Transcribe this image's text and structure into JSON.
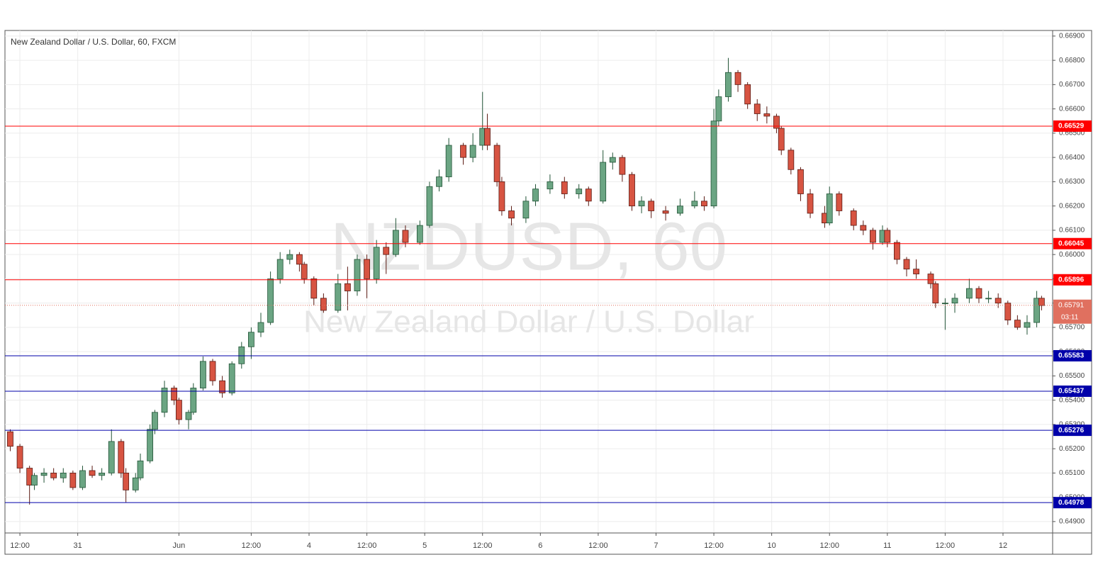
{
  "chart_data": {
    "type": "candlestick",
    "title": "New Zealand Dollar / U.S. Dollar, 60, FXCM",
    "watermark": "NZDUSD, 60",
    "watermark_subtitle": "New Zealand Dollar / U.S. Dollar",
    "x": [
      -2,
      0,
      2,
      3,
      5,
      7,
      9,
      11,
      13,
      15,
      17,
      19,
      21,
      22,
      24,
      25,
      27,
      28,
      30,
      32,
      33,
      35,
      36,
      38,
      40,
      42,
      44,
      46,
      48,
      50,
      52,
      54,
      56,
      58,
      59,
      61,
      63,
      66,
      68,
      70,
      72,
      74,
      76,
      78,
      80,
      83,
      85,
      87,
      89,
      92,
      94,
      96,
      97,
      99,
      100,
      102,
      105,
      107,
      110,
      113,
      116,
      118,
      121,
      123,
      125,
      127,
      129,
      131,
      134,
      137,
      140,
      142,
      144,
      145,
      147,
      149,
      151,
      153,
      155,
      157,
      158,
      160,
      162,
      164,
      167,
      168,
      170,
      173,
      175,
      177,
      179,
      180,
      182,
      184,
      186,
      189,
      190,
      192,
      194,
      197,
      199,
      201,
      203,
      205,
      207,
      209,
      211,
      212
    ],
    "open": [
      0.6527,
      0.6521,
      0.6512,
      0.6505,
      0.6509,
      0.651,
      0.6508,
      0.651,
      0.6504,
      0.6511,
      0.6509,
      0.651,
      0.6523,
      0.651,
      0.6503,
      0.6508,
      0.6515,
      0.6528,
      0.6535,
      0.6545,
      0.654,
      0.6532,
      0.6535,
      0.6545,
      0.6556,
      0.6548,
      0.6543,
      0.6555,
      0.6562,
      0.6568,
      0.6572,
      0.659,
      0.6598,
      0.66,
      0.6596,
      0.659,
      0.6582,
      0.6577,
      0.6588,
      0.6585,
      0.6598,
      0.659,
      0.6603,
      0.66,
      0.661,
      0.6605,
      0.6612,
      0.6628,
      0.6632,
      0.6645,
      0.664,
      0.6645,
      0.6652,
      0.6645,
      0.663,
      0.6618,
      0.6615,
      0.6622,
      0.6627,
      0.663,
      0.6625,
      0.6627,
      0.6622,
      0.6638,
      0.664,
      0.6633,
      0.662,
      0.6622,
      0.6618,
      0.6617,
      0.662,
      0.6622,
      0.662,
      0.6655,
      0.6665,
      0.6675,
      0.667,
      0.6662,
      0.6658,
      0.6657,
      0.6652,
      0.6643,
      0.6635,
      0.6625,
      0.6617,
      0.6613,
      0.6625,
      0.6618,
      0.6612,
      0.661,
      0.6605,
      0.661,
      0.6605,
      0.6598,
      0.6594,
      0.6592,
      0.6588,
      0.658,
      0.658,
      0.6582,
      0.6586,
      0.6582,
      0.6582,
      0.658,
      0.6573,
      0.657,
      0.6572,
      0.6582
    ],
    "high": [
      0.6528,
      0.6522,
      0.6513,
      0.651,
      0.6512,
      0.6512,
      0.6512,
      0.6511,
      0.6513,
      0.6513,
      0.6512,
      0.6528,
      0.6524,
      0.6512,
      0.651,
      0.6518,
      0.653,
      0.6536,
      0.6548,
      0.6546,
      0.6541,
      0.6536,
      0.6547,
      0.6558,
      0.6557,
      0.655,
      0.6556,
      0.6564,
      0.657,
      0.6576,
      0.6593,
      0.6601,
      0.6602,
      0.6601,
      0.6597,
      0.6591,
      0.6584,
      0.6592,
      0.6595,
      0.66,
      0.66,
      0.6606,
      0.6605,
      0.6615,
      0.6612,
      0.6614,
      0.663,
      0.6635,
      0.6648,
      0.6646,
      0.665,
      0.6667,
      0.6658,
      0.6646,
      0.6632,
      0.662,
      0.6624,
      0.6629,
      0.6633,
      0.6632,
      0.6629,
      0.6628,
      0.6643,
      0.6642,
      0.6641,
      0.6634,
      0.6624,
      0.6623,
      0.662,
      0.6623,
      0.6626,
      0.6624,
      0.666,
      0.6668,
      0.6681,
      0.6676,
      0.6671,
      0.6664,
      0.6661,
      0.6658,
      0.6653,
      0.6644,
      0.6636,
      0.6627,
      0.662,
      0.6628,
      0.6626,
      0.6619,
      0.6614,
      0.6611,
      0.6612,
      0.6611,
      0.6606,
      0.6599,
      0.6598,
      0.6593,
      0.6589,
      0.6582,
      0.6584,
      0.659,
      0.6587,
      0.6585,
      0.6584,
      0.6581,
      0.6575,
      0.6575,
      0.6585,
      0.6583
    ],
    "low": [
      0.6519,
      0.651,
      0.6497,
      0.6503,
      0.6506,
      0.6507,
      0.6506,
      0.6503,
      0.6503,
      0.6508,
      0.6507,
      0.6509,
      0.6508,
      0.6498,
      0.6502,
      0.6507,
      0.6514,
      0.6526,
      0.6533,
      0.6538,
      0.653,
      0.6528,
      0.6534,
      0.6544,
      0.6546,
      0.6541,
      0.6542,
      0.6553,
      0.6557,
      0.6566,
      0.6571,
      0.6588,
      0.6596,
      0.6593,
      0.6588,
      0.6579,
      0.6576,
      0.6576,
      0.6577,
      0.6583,
      0.6582,
      0.6588,
      0.6592,
      0.6599,
      0.6603,
      0.6604,
      0.6611,
      0.6626,
      0.663,
      0.6637,
      0.6638,
      0.6643,
      0.6643,
      0.6628,
      0.6616,
      0.6612,
      0.6613,
      0.662,
      0.6625,
      0.6623,
      0.6623,
      0.662,
      0.6621,
      0.6635,
      0.663,
      0.6618,
      0.6617,
      0.6615,
      0.6614,
      0.6616,
      0.6619,
      0.6618,
      0.6619,
      0.6653,
      0.6663,
      0.6667,
      0.666,
      0.6655,
      0.6654,
      0.665,
      0.6641,
      0.6633,
      0.6622,
      0.6615,
      0.6611,
      0.6612,
      0.6616,
      0.661,
      0.6608,
      0.6602,
      0.6604,
      0.6603,
      0.6596,
      0.6591,
      0.659,
      0.6586,
      0.6578,
      0.6569,
      0.6576,
      0.658,
      0.658,
      0.658,
      0.6578,
      0.6571,
      0.6569,
      0.6567,
      0.657,
      0.6577
    ],
    "close": [
      0.6521,
      0.6512,
      0.6505,
      0.6509,
      0.651,
      0.6508,
      0.651,
      0.6504,
      0.6511,
      0.6509,
      0.651,
      0.6523,
      0.651,
      0.6503,
      0.6508,
      0.6515,
      0.6528,
      0.6535,
      0.6545,
      0.654,
      0.6532,
      0.6535,
      0.6545,
      0.6556,
      0.6548,
      0.6543,
      0.6555,
      0.6562,
      0.6568,
      0.6572,
      0.659,
      0.6598,
      0.66,
      0.6596,
      0.659,
      0.6582,
      0.6577,
      0.6588,
      0.6585,
      0.6598,
      0.659,
      0.6603,
      0.66,
      0.661,
      0.6605,
      0.6612,
      0.6628,
      0.6632,
      0.6645,
      0.664,
      0.6645,
      0.6652,
      0.6645,
      0.663,
      0.6618,
      0.6615,
      0.6622,
      0.6627,
      0.663,
      0.6625,
      0.6627,
      0.6622,
      0.6638,
      0.664,
      0.6633,
      0.662,
      0.6622,
      0.6618,
      0.6617,
      0.662,
      0.6622,
      0.662,
      0.6655,
      0.6665,
      0.6675,
      0.667,
      0.6662,
      0.6658,
      0.6657,
      0.6652,
      0.6643,
      0.6635,
      0.6625,
      0.6617,
      0.6613,
      0.6625,
      0.6618,
      0.6612,
      0.661,
      0.6605,
      0.661,
      0.6605,
      0.6598,
      0.6594,
      0.6592,
      0.6588,
      0.658,
      0.658,
      0.6582,
      0.6586,
      0.6582,
      0.6582,
      0.658,
      0.6573,
      0.657,
      0.6572,
      0.6582,
      0.6579
    ],
    "up_color": "#6ba583",
    "down_color": "#d75442",
    "xlim": [
      -3.1,
      214.3
    ],
    "xticks": [
      {
        "value": 0,
        "label": "12:00"
      },
      {
        "value": 12,
        "label": "31"
      },
      {
        "value": 33,
        "label": "Jun"
      },
      {
        "value": 48,
        "label": "12:00"
      },
      {
        "value": 60,
        "label": "4"
      },
      {
        "value": 72,
        "label": "12:00"
      },
      {
        "value": 84,
        "label": "5"
      },
      {
        "value": 96,
        "label": "12:00"
      },
      {
        "value": 108,
        "label": "6"
      },
      {
        "value": 120,
        "label": "12:00"
      },
      {
        "value": 132,
        "label": "7"
      },
      {
        "value": 144,
        "label": "12:00"
      },
      {
        "value": 156,
        "label": "10"
      },
      {
        "value": 168,
        "label": "12:00"
      },
      {
        "value": 180,
        "label": "11"
      },
      {
        "value": 192,
        "label": "12:00"
      },
      {
        "value": 204,
        "label": "12"
      }
    ],
    "ylim": [
      0.64853,
      0.66923
    ],
    "yticks": [
      {
        "value": 0.649,
        "label": "0.64900"
      },
      {
        "value": 0.65,
        "label": "0.65000"
      },
      {
        "value": 0.651,
        "label": "0.65100"
      },
      {
        "value": 0.652,
        "label": "0.65200"
      },
      {
        "value": 0.653,
        "label": "0.65300"
      },
      {
        "value": 0.654,
        "label": "0.65400"
      },
      {
        "value": 0.655,
        "label": "0.65500"
      },
      {
        "value": 0.656,
        "label": "0.65600"
      },
      {
        "value": 0.657,
        "label": "0.65700"
      },
      {
        "value": 0.658,
        "label": "0.65800"
      },
      {
        "value": 0.659,
        "label": "0.65900"
      },
      {
        "value": 0.66,
        "label": "0.66000"
      },
      {
        "value": 0.661,
        "label": "0.66100"
      },
      {
        "value": 0.662,
        "label": "0.66200"
      },
      {
        "value": 0.663,
        "label": "0.66300"
      },
      {
        "value": 0.664,
        "label": "0.66400"
      },
      {
        "value": 0.665,
        "label": "0.66500"
      },
      {
        "value": 0.666,
        "label": "0.66600"
      },
      {
        "value": 0.667,
        "label": "0.66700"
      },
      {
        "value": 0.668,
        "label": "0.66800"
      },
      {
        "value": 0.669,
        "label": "0.66900"
      }
    ],
    "grid": true,
    "levels": [
      {
        "value": 0.66529,
        "label": "0.66529",
        "color": "#ff0000"
      },
      {
        "value": 0.66045,
        "label": "0.66045",
        "color": "#ff0000"
      },
      {
        "value": 0.65896,
        "label": "0.65896",
        "color": "#ff0000"
      },
      {
        "value": 0.65583,
        "label": "0.65583",
        "color": "#0000aa"
      },
      {
        "value": 0.65437,
        "label": "0.65437",
        "color": "#0000aa"
      },
      {
        "value": 0.65276,
        "label": "0.65276",
        "color": "#0000aa"
      },
      {
        "value": 0.64978,
        "label": "0.64978",
        "color": "#0000aa"
      }
    ],
    "last_price": {
      "value": 0.65791,
      "label": "0.65791",
      "countdown": "03:11",
      "color": "#e0705f"
    }
  }
}
